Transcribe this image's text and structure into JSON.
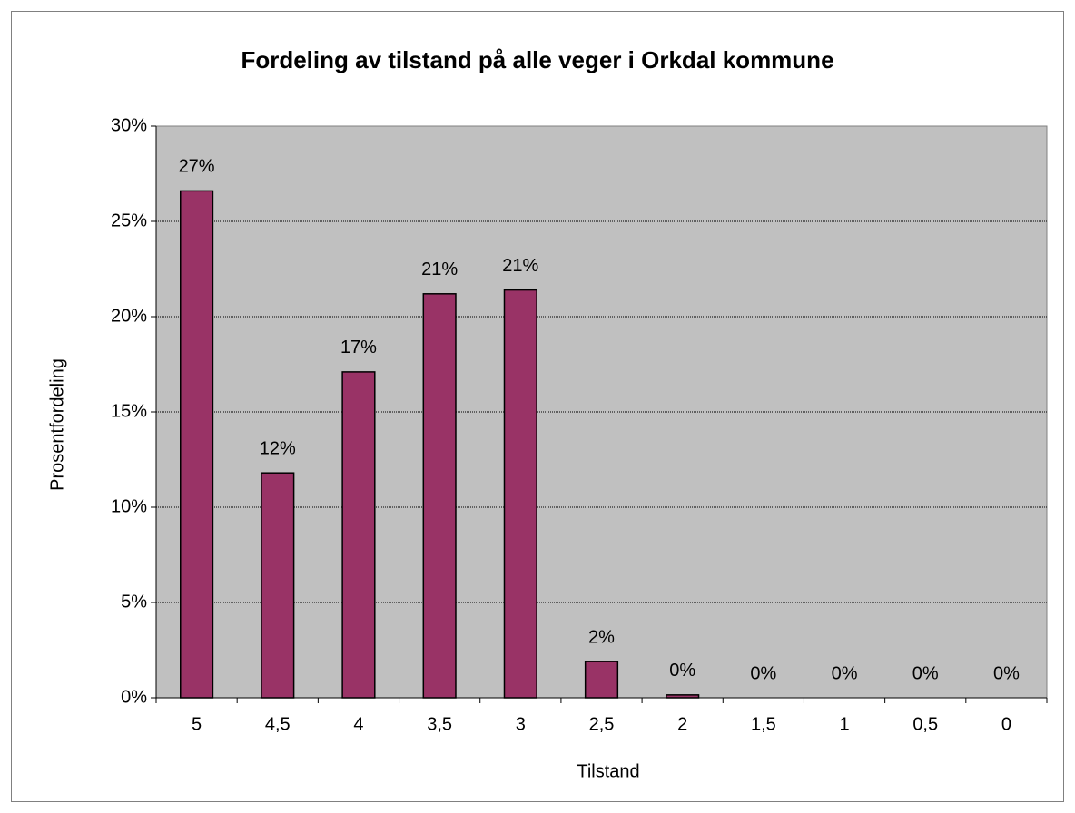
{
  "chart_data": {
    "type": "bar",
    "title": "Fordeling av tilstand på alle veger i Orkdal kommune",
    "x_label": "Tilstand",
    "y_label": "Prosentfordeling",
    "categories": [
      "5",
      "4,5",
      "4",
      "3,5",
      "3",
      "2,5",
      "2",
      "1,5",
      "1",
      "0,5",
      "0"
    ],
    "values": [
      26.6,
      11.8,
      17.1,
      21.2,
      21.4,
      1.9,
      0.15,
      0,
      0,
      0,
      0
    ],
    "value_labels": [
      "27%",
      "12%",
      "17%",
      "21%",
      "21%",
      "2%",
      "0%",
      "0%",
      "0%",
      "0%",
      "0%"
    ],
    "color": "#993366",
    "plot_background": "#c0c0c0",
    "ylim": [
      0,
      30
    ],
    "yticks": [
      {
        "value": 0,
        "label": "0%"
      },
      {
        "value": 5,
        "label": "5%"
      },
      {
        "value": 10,
        "label": "10%"
      },
      {
        "value": 15,
        "label": "15%"
      },
      {
        "value": 20,
        "label": "20%"
      },
      {
        "value": 25,
        "label": "25%"
      },
      {
        "value": 30,
        "label": "30%"
      }
    ],
    "grid": true
  }
}
